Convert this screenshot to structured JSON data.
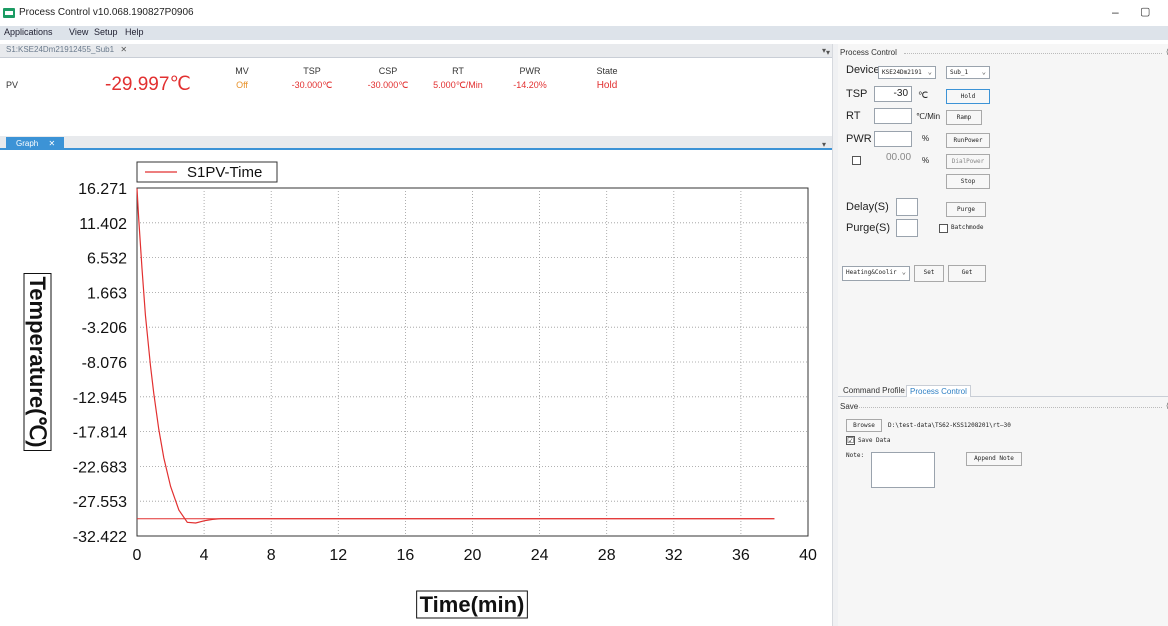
{
  "window": {
    "title": "Process Control v10.068.190827P0906",
    "minimize": "–",
    "restore": "▢"
  },
  "menu": [
    "Applications",
    "View",
    "Setup",
    "Help"
  ],
  "doc_tab": {
    "label": "S1:KSE24Dm21912455_Sub1",
    "close": "✕"
  },
  "readout": {
    "pv_label": "PV",
    "pv_value": "-29.997℃",
    "columns": [
      {
        "label": "MV",
        "value": "Off"
      },
      {
        "label": "TSP",
        "value": "-30.000℃"
      },
      {
        "label": "CSP",
        "value": "-30.000℃"
      },
      {
        "label": "RT",
        "value": "5.000℃/Min"
      },
      {
        "label": "PWR",
        "value": "-14.20%"
      },
      {
        "label": "State",
        "value": "Hold"
      }
    ],
    "accent_color": "#e23030"
  },
  "graph_tab": {
    "label": "Graph",
    "close": "✕"
  },
  "chart_data": {
    "type": "line",
    "xlabel": "Time(min)",
    "ylabel": "Temperature(℃)",
    "xlim": [
      0,
      40
    ],
    "ylim": [
      -32.422,
      16.271
    ],
    "x_ticks": [
      "0",
      "4",
      "8",
      "12",
      "16",
      "20",
      "24",
      "28",
      "32",
      "36",
      "40"
    ],
    "y_ticks": [
      "16.271",
      "11.402",
      "6.532",
      "1.663",
      "-3.206",
      "-8.076",
      "-12.945",
      "-17.814",
      "-22.683",
      "-27.553",
      "-32.422"
    ],
    "grid": "dotted",
    "legend": "top-left",
    "series": [
      {
        "name": "S1PV-Time",
        "color": "#e23030",
        "x": [
          0,
          0.1,
          0.3,
          0.5,
          0.8,
          1.0,
          1.3,
          1.6,
          2.0,
          2.5,
          3.0,
          3.5,
          4.0,
          4.5,
          5.0,
          6,
          8,
          10,
          12,
          16,
          20,
          24,
          28,
          32,
          36,
          38
        ],
        "y": [
          16.2,
          12.0,
          5.0,
          -1.5,
          -8.5,
          -12.5,
          -17.5,
          -21.5,
          -25.5,
          -28.8,
          -30.5,
          -30.6,
          -30.3,
          -30.1,
          -30.0,
          -30.0,
          -30.0,
          -30.0,
          -30.0,
          -30.0,
          -30.0,
          -30.0,
          -30.0,
          -30.0,
          -30.0,
          -30.0
        ]
      }
    ],
    "reference_line": {
      "y": -30,
      "color": "#e23030"
    }
  },
  "process_control": {
    "section_title": "Process Control",
    "device_label": "Device",
    "device_value": "KSE24Dm2191",
    "sub_value": "Sub_1",
    "tsp_label": "TSP",
    "tsp_value": "-30",
    "tsp_unit": "℃",
    "hold_button": "Hold",
    "rt_label": "RT",
    "rt_value": "",
    "rt_unit": "℃/Min",
    "ramp_button": "Ramp",
    "pwr_label": "PWR",
    "pwr_value": "",
    "pwr_unit": "%",
    "runpower_button": "RunPower",
    "dial_value": "00.00",
    "dial_unit": "%",
    "dialpower_button": "DialPower",
    "stop_button": "Stop",
    "delay_label": "Delay(S)",
    "delay_value": "",
    "purge_label": "Purge(S)",
    "purge_value": "",
    "purge_button": "Purge",
    "batchmode_label": "Batchmode",
    "mode_value": "Heating&Coolir",
    "set_button": "Set",
    "get_button": "Get"
  },
  "bottom_tabs": [
    "Command Profile",
    "Process Control"
  ],
  "save": {
    "section_title": "Save",
    "browse_button": "Browse",
    "path": "D:\\test-data\\TS62-KSS1208201\\rt—30",
    "save_data_label": "Save Data",
    "save_data_checked": "☑",
    "note_label": "Note:",
    "append_note_button": "Append Note"
  }
}
